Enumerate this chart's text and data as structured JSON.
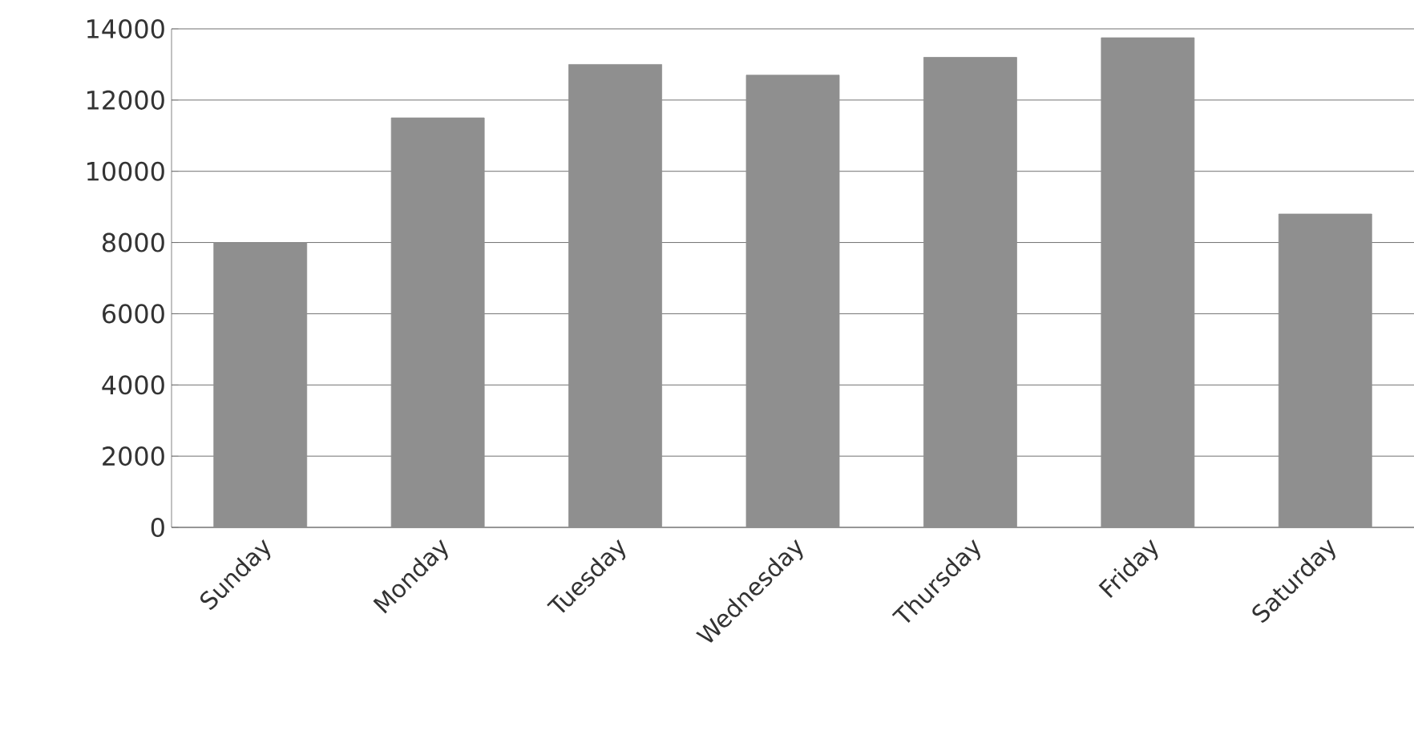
{
  "chart_data": {
    "type": "bar",
    "categories": [
      "Sunday",
      "Monday",
      "Tuesday",
      "Wednesday",
      "Thursday",
      "Friday",
      "Saturday"
    ],
    "values": [
      8000,
      11500,
      13000,
      12700,
      13200,
      13750,
      8800
    ],
    "color": "#8f8f8f",
    "ylim": [
      0,
      14000
    ],
    "yticks": [
      0,
      2000,
      4000,
      6000,
      8000,
      10000,
      12000,
      14000
    ],
    "grid": "y"
  }
}
